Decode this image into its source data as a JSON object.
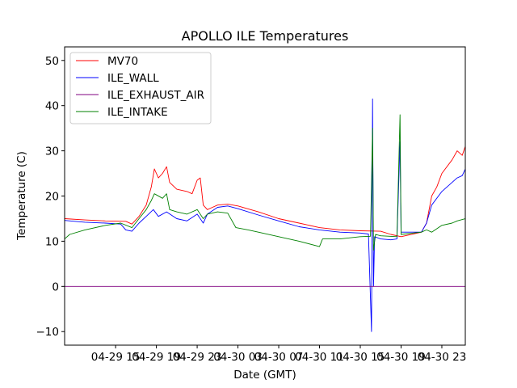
{
  "chart_data": {
    "type": "line",
    "title": "APOLLO ILE Temperatures",
    "xlabel": "Date (GMT)",
    "ylabel": "Temperature (C)",
    "x_unit": "hours since 04-29 08:00 GMT",
    "xlim": [
      0,
      39.3
    ],
    "ylim": [
      -13,
      53
    ],
    "x_ticks": [
      {
        "value": 5,
        "label": "04-29 15"
      },
      {
        "value": 9,
        "label": "04-29 19"
      },
      {
        "value": 13,
        "label": "04-29 23"
      },
      {
        "value": 17,
        "label": "04-30 03"
      },
      {
        "value": 21,
        "label": "04-30 07"
      },
      {
        "value": 25,
        "label": "04-30 11"
      },
      {
        "value": 29,
        "label": "04-30 15"
      },
      {
        "value": 33,
        "label": "04-30 19"
      },
      {
        "value": 37,
        "label": "04-30 23"
      }
    ],
    "y_ticks": [
      -10,
      0,
      10,
      20,
      30,
      40,
      50
    ],
    "legend_position": "top-left",
    "series": [
      {
        "name": "MV70",
        "color": "#ff0000",
        "points": [
          [
            0,
            15
          ],
          [
            2,
            14.7
          ],
          [
            4,
            14.5
          ],
          [
            6,
            14.4
          ],
          [
            6.6,
            13.8
          ],
          [
            7.3,
            15.5
          ],
          [
            8,
            18
          ],
          [
            8.5,
            22
          ],
          [
            8.8,
            26
          ],
          [
            9.2,
            24
          ],
          [
            9.6,
            25
          ],
          [
            10,
            26.5
          ],
          [
            10.3,
            23
          ],
          [
            11,
            21.5
          ],
          [
            12,
            21
          ],
          [
            12.5,
            20.5
          ],
          [
            13,
            23.5
          ],
          [
            13.3,
            24
          ],
          [
            13.6,
            18
          ],
          [
            14,
            17
          ],
          [
            14.5,
            17.5
          ],
          [
            15,
            18
          ],
          [
            16,
            18.2
          ],
          [
            17,
            17.8
          ],
          [
            19,
            16.5
          ],
          [
            21,
            15
          ],
          [
            23,
            14
          ],
          [
            25,
            13
          ],
          [
            27,
            12.5
          ],
          [
            29,
            12.3
          ],
          [
            31,
            12.2
          ],
          [
            32,
            11.5
          ],
          [
            33,
            11
          ],
          [
            35,
            12
          ],
          [
            35.5,
            14
          ],
          [
            36,
            20
          ],
          [
            36.5,
            22
          ],
          [
            37,
            25
          ],
          [
            38,
            28
          ],
          [
            38.5,
            30
          ],
          [
            39,
            29
          ],
          [
            39.3,
            31
          ]
        ]
      },
      {
        "name": "ILE_WALL",
        "color": "#0000ff",
        "points": [
          [
            0,
            14.6
          ],
          [
            2,
            14.2
          ],
          [
            4,
            14
          ],
          [
            5.5,
            13.8
          ],
          [
            6,
            12.5
          ],
          [
            6.6,
            12.2
          ],
          [
            7.3,
            14
          ],
          [
            8,
            15.5
          ],
          [
            8.7,
            17
          ],
          [
            9.2,
            15.5
          ],
          [
            10,
            16.5
          ],
          [
            11,
            15
          ],
          [
            12,
            14.5
          ],
          [
            13,
            16
          ],
          [
            13.6,
            14
          ],
          [
            14,
            16
          ],
          [
            15,
            17.5
          ],
          [
            16,
            17.8
          ],
          [
            17,
            17.2
          ],
          [
            19,
            15.8
          ],
          [
            21,
            14.5
          ],
          [
            23,
            13.2
          ],
          [
            25,
            12.5
          ],
          [
            27,
            12
          ],
          [
            29,
            11.8
          ],
          [
            29.8,
            11.6
          ],
          [
            30.1,
            -10
          ],
          [
            30.2,
            41.5
          ],
          [
            30.3,
            0
          ],
          [
            30.4,
            11
          ],
          [
            31,
            10.5
          ],
          [
            32,
            10.3
          ],
          [
            32.6,
            10.5
          ],
          [
            32.9,
            32
          ],
          [
            33,
            12
          ],
          [
            35,
            12
          ],
          [
            35.5,
            14
          ],
          [
            36,
            18
          ],
          [
            37,
            21
          ],
          [
            38,
            23
          ],
          [
            38.5,
            24
          ],
          [
            39,
            24.5
          ],
          [
            39.3,
            26
          ]
        ]
      },
      {
        "name": "ILE_EXHAUST_AIR",
        "color": "#800080",
        "points": [
          [
            0,
            0
          ],
          [
            39.3,
            0
          ]
        ]
      },
      {
        "name": "ILE_INTAKE",
        "color": "#008000",
        "points": [
          [
            0,
            10.5
          ],
          [
            0.5,
            11.5
          ],
          [
            2,
            12.5
          ],
          [
            4,
            13.5
          ],
          [
            5.5,
            14
          ],
          [
            6.6,
            13
          ],
          [
            7.3,
            15
          ],
          [
            8,
            17
          ],
          [
            8.5,
            19
          ],
          [
            8.8,
            20.5
          ],
          [
            9.6,
            19.5
          ],
          [
            10,
            20.5
          ],
          [
            10.3,
            17
          ],
          [
            11,
            16.5
          ],
          [
            12,
            16
          ],
          [
            13,
            17
          ],
          [
            13.6,
            15
          ],
          [
            14,
            16
          ],
          [
            15,
            16.5
          ],
          [
            16,
            16.2
          ],
          [
            16.8,
            13
          ],
          [
            18,
            12.5
          ],
          [
            19,
            12
          ],
          [
            21,
            11
          ],
          [
            23,
            10
          ],
          [
            25,
            8.8
          ],
          [
            25.3,
            10.5
          ],
          [
            27,
            10.5
          ],
          [
            29,
            11
          ],
          [
            30,
            11.1
          ],
          [
            30.2,
            35
          ],
          [
            30.3,
            8
          ],
          [
            30.5,
            11.5
          ],
          [
            31,
            11.2
          ],
          [
            32.6,
            11
          ],
          [
            32.9,
            38
          ],
          [
            33,
            11.5
          ],
          [
            35,
            12
          ],
          [
            35.5,
            12.5
          ],
          [
            36,
            12
          ],
          [
            37,
            13.5
          ],
          [
            38,
            14
          ],
          [
            38.5,
            14.5
          ],
          [
            39.3,
            15
          ]
        ]
      }
    ]
  }
}
